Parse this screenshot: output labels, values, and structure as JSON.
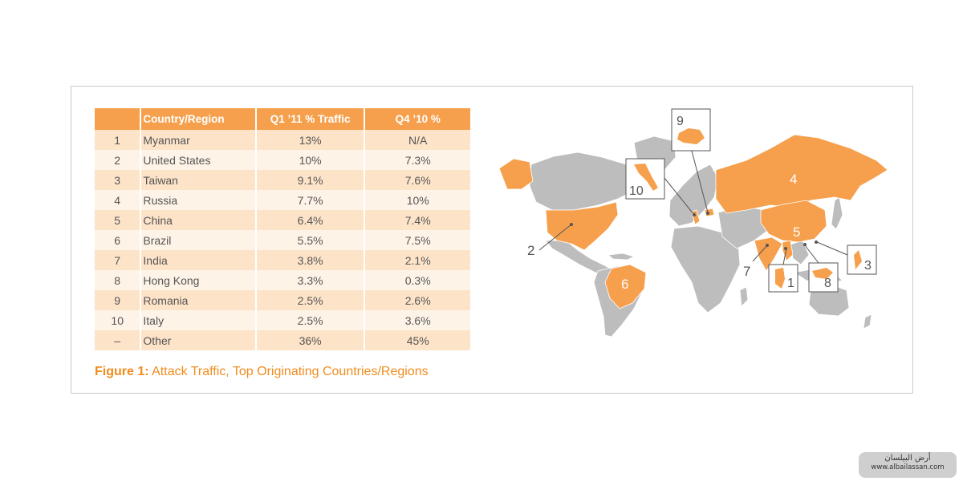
{
  "table": {
    "headers": {
      "rank": "",
      "country": "Country/Region",
      "q1": "Q1 ’11 % Traffic",
      "q4": "Q4 ’10 %"
    },
    "rows": [
      {
        "rank": "1",
        "country": "Myanmar",
        "q1": "13%",
        "q4": "N/A"
      },
      {
        "rank": "2",
        "country": "United States",
        "q1": "10%",
        "q4": "7.3%"
      },
      {
        "rank": "3",
        "country": "Taiwan",
        "q1": "9.1%",
        "q4": "7.6%"
      },
      {
        "rank": "4",
        "country": "Russia",
        "q1": "7.7%",
        "q4": "10%"
      },
      {
        "rank": "5",
        "country": "China",
        "q1": "6.4%",
        "q4": "7.4%"
      },
      {
        "rank": "6",
        "country": "Brazil",
        "q1": "5.5%",
        "q4": "7.5%"
      },
      {
        "rank": "7",
        "country": "India",
        "q1": "3.8%",
        "q4": "2.1%"
      },
      {
        "rank": "8",
        "country": "Hong Kong",
        "q1": "3.3%",
        "q4": "0.3%"
      },
      {
        "rank": "9",
        "country": "Romania",
        "q1": "2.5%",
        "q4": "2.6%"
      },
      {
        "rank": "10",
        "country": "Italy",
        "q1": "2.5%",
        "q4": "3.6%"
      },
      {
        "rank": "–",
        "country": "Other",
        "q1": "36%",
        "q4": "45%"
      }
    ]
  },
  "caption": {
    "label": "Figure 1:",
    "text": "Attack Traffic, Top Originating Countries/Regions"
  },
  "map": {
    "labels": {
      "russia": "4",
      "china": "5",
      "brazil": "6",
      "us": "2",
      "india": "7",
      "myanmar": "1",
      "hongkong": "8",
      "taiwan": "3",
      "romania": "9",
      "italy": "10"
    }
  },
  "watermark": {
    "line1": "أرض البيلسان",
    "line2": "www.albailassan.com"
  },
  "colors": {
    "accent": "#f6a04d",
    "land": "#bdbdbd",
    "caption": "#f08c1e"
  }
}
